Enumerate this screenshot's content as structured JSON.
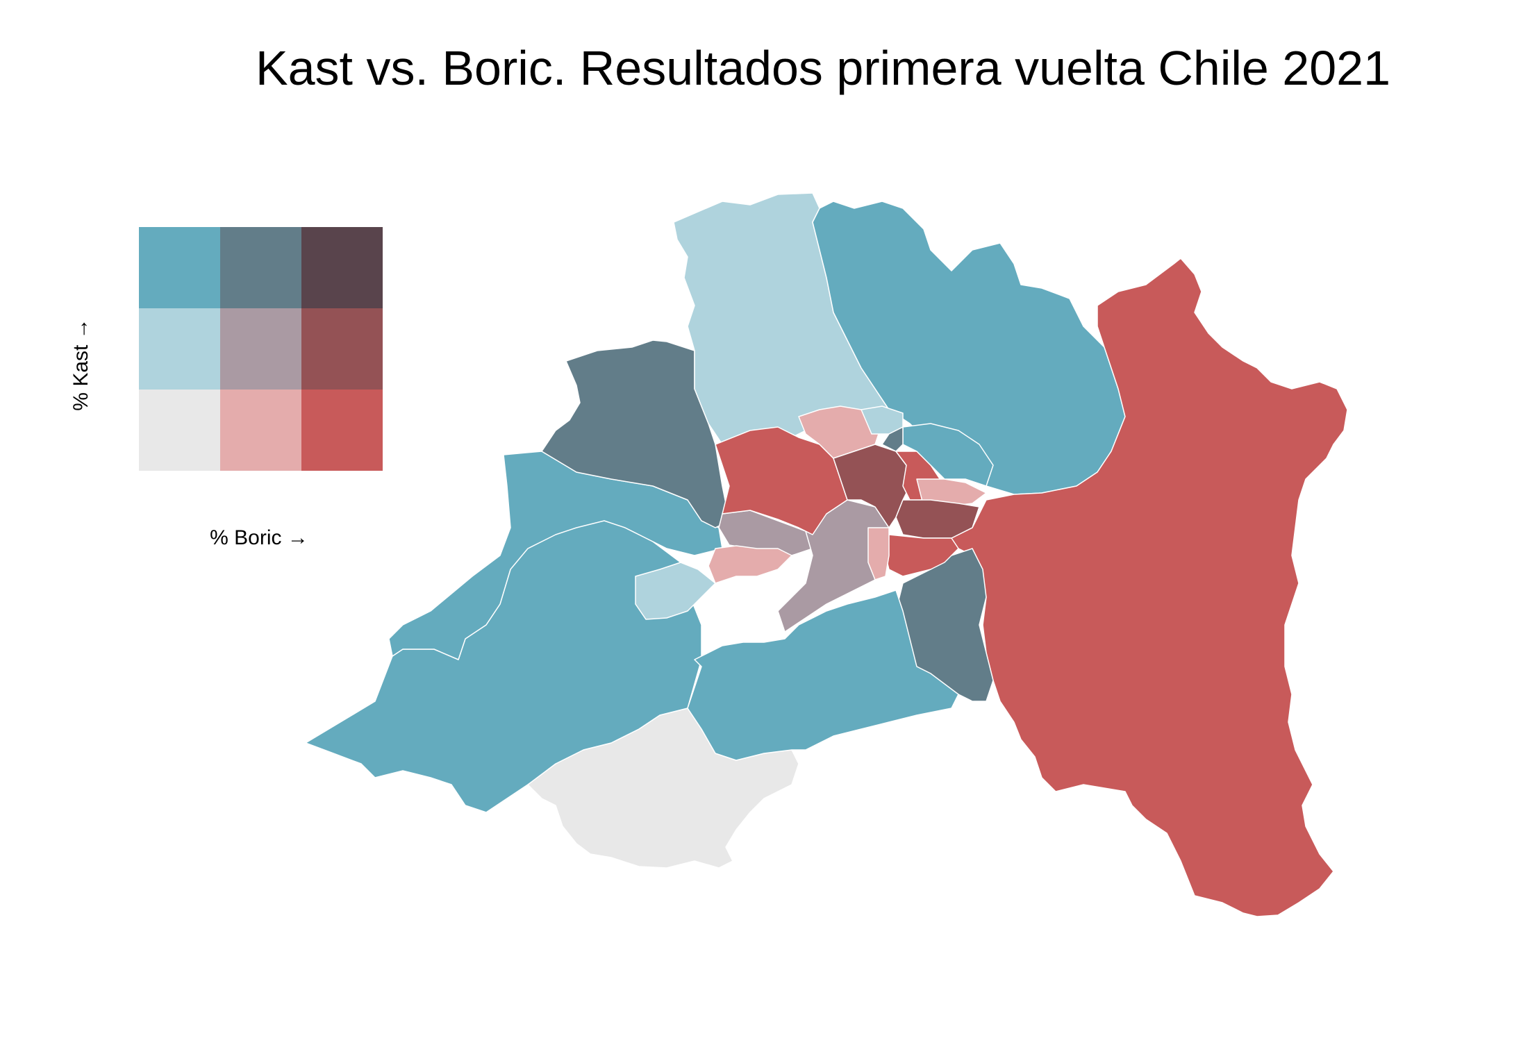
{
  "title": "Kast vs. Boric. Resultados primera vuelta Chile 2021",
  "legend": {
    "y_label": "% Kast →",
    "x_label": "% Boric →",
    "grid": [
      [
        "#64abbe",
        "#627d89",
        "#59444c"
      ],
      [
        "#afd3dd",
        "#aa9aa3",
        "#945255"
      ],
      [
        "#e8e8e8",
        "#e4acac",
        "#c85a5a"
      ]
    ]
  },
  "colors": {
    "low_low": "#e8e8e8",
    "low_kast_mid_boric": "#e4acac",
    "low_kast_high_boric": "#c85a5a",
    "mid_kast_low_boric": "#afd3dd",
    "mid_mid": "#aa9aa3",
    "mid_kast_high_boric": "#945255",
    "high_kast_low_boric": "#64abbe",
    "high_kast_mid_boric": "#627d89",
    "high_high": "#59444c"
  }
}
